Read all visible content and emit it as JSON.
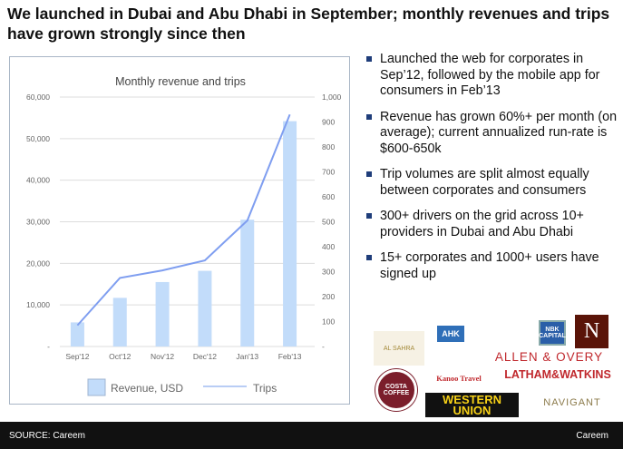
{
  "title": "We launched in Dubai and Abu Dhabi in September; monthly revenues and trips have grown strongly since then",
  "chart_data": {
    "type": "bar+line",
    "title": "Monthly revenue and trips",
    "categories": [
      "Sep'12",
      "Oct'12",
      "Nov'12",
      "Dec'12",
      "Jan'13",
      "Feb'13"
    ],
    "series": [
      {
        "name": "Revenue, USD",
        "type": "bar",
        "axis": "left",
        "values": [
          5800,
          11700,
          15500,
          18200,
          30500,
          54200
        ]
      },
      {
        "name": "Trips",
        "type": "line",
        "axis": "right",
        "values": [
          85,
          275,
          305,
          345,
          505,
          930
        ]
      }
    ],
    "y_left": {
      "range": [
        0,
        60000
      ],
      "ticks": [
        "-",
        "10,000",
        "20,000",
        "30,000",
        "40,000",
        "50,000",
        "60,000"
      ]
    },
    "y_right": {
      "range": [
        0,
        1000
      ],
      "ticks": [
        "-",
        "100",
        "200",
        "300",
        "400",
        "500",
        "600",
        "700",
        "800",
        "900",
        "1,000"
      ]
    },
    "grid": true,
    "legend": "bottom",
    "colors": {
      "bar": "#c2dcfa",
      "line": "#7f9ef0"
    }
  },
  "bullets": [
    "Launched the web for corporates in Sep’12, followed by the mobile app for consumers in Feb’13",
    "Revenue has grown 60%+ per month  (on average); current annualized run-rate is $600-650k",
    "Trip volumes are split almost equally between corporates and consumers",
    "300+ drivers on the grid across 10+ providers in Dubai and Abu Dhabi",
    "15+ corporates and 1000+ users have signed up"
  ],
  "logos": {
    "alsahra": "AL SAHRA",
    "ahk": "AHK",
    "nbk": "NBK CAPITAL",
    "nespresso": "N",
    "allen": "ALLEN & OVERY",
    "kanoo": "Kanoo Travel",
    "latham": "LATHAM&WATKINS",
    "costa": "COSTA COFFEE",
    "wu1": "WESTERN",
    "wu2": "UNION",
    "navigant": "NAVIGANT"
  },
  "footer": {
    "source": "SOURCE: Careem",
    "brand": "Careem"
  }
}
